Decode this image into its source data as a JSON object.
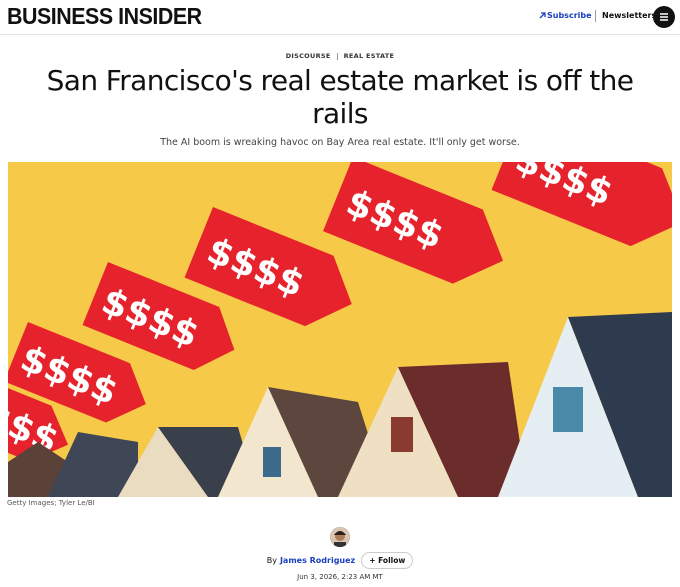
{
  "header": {
    "logo": "BUSINESS INSIDER",
    "subscribe": "Subscribe",
    "newsletters": "Newsletters"
  },
  "article": {
    "tags": [
      "DISCOURSE",
      "REAL ESTATE"
    ],
    "title": "San Francisco's real estate market is off the rails",
    "subtitle": "The AI boom is wreaking havoc on Bay Area real estate. It'll only get worse.",
    "image": {
      "price_tags": [
        "$$$$",
        "$$$$",
        "$$$$",
        "$$$$",
        "$$$$",
        "$$$$"
      ]
    },
    "caption": "Getty Images; Tyler Le/BI",
    "byline": {
      "by": "By",
      "author": "James Rodriguez",
      "follow": "+ Follow",
      "date": "Jun 3, 2026, 2:23 AM MT"
    }
  }
}
